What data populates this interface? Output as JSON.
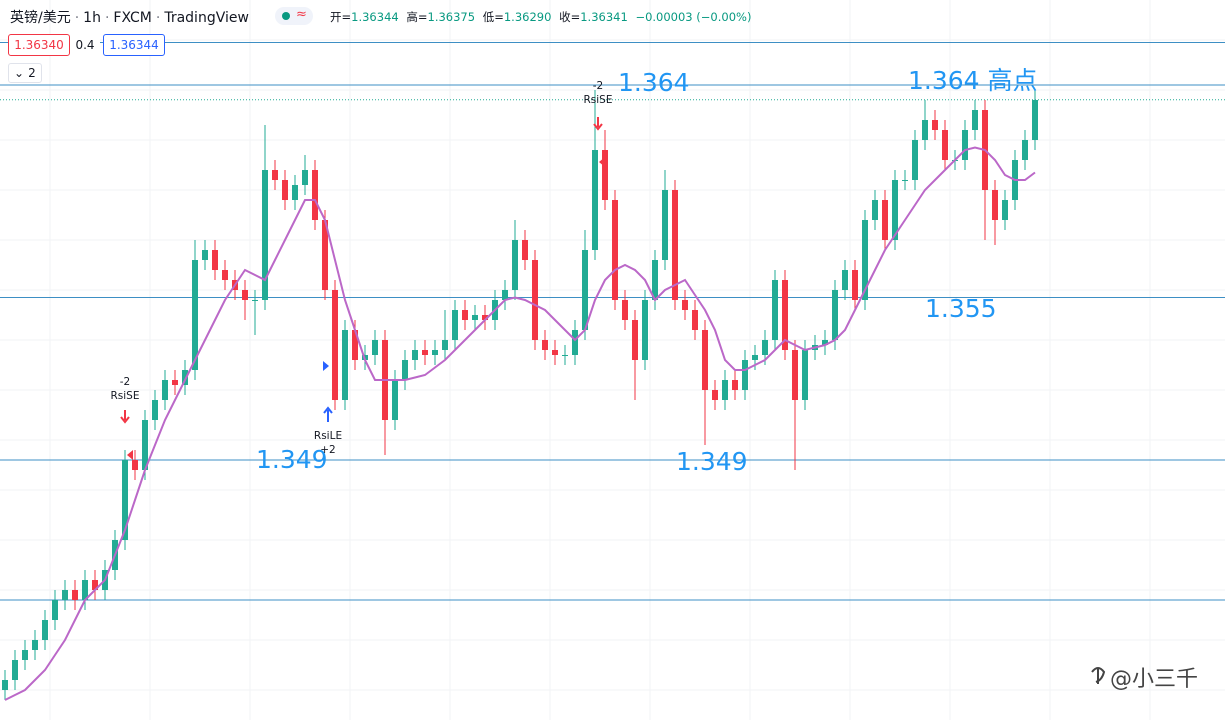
{
  "chart_data": {
    "type": "candlestick",
    "symbol": "英镑/美元",
    "interval": "1h",
    "source": "FXCM",
    "platform": "TradingView",
    "legend": {
      "open_label": "开=",
      "open": "1.36344",
      "high_label": "高=",
      "high": "1.36375",
      "low_label": "低=",
      "low": "1.36290",
      "close_label": "收=",
      "close": "1.36341",
      "change": "−0.00003 (−0.00%)"
    },
    "sell_price": "1.36340",
    "spread": "0.4",
    "buy_price": "1.36344",
    "indicator_count": "2",
    "ylim": [
      1.3386,
      1.3674
    ],
    "up_color": "#22ab94",
    "down_color": "#f23645",
    "ma_color": "#bb68c8",
    "line_color": "#3d8fc4",
    "hlines": [
      1.3657,
      1.364,
      1.3555,
      1.349,
      1.3434
    ],
    "open": [
      1.3398,
      1.3402,
      1.341,
      1.3414,
      1.3418,
      1.3426,
      1.3434,
      1.3438,
      1.3434,
      1.3442,
      1.3438,
      1.3446,
      1.3458,
      1.349,
      1.3486,
      1.3506,
      1.3514,
      1.3522,
      1.352,
      1.3526,
      1.357,
      1.3574,
      1.3566,
      1.3562,
      1.3558,
      1.3554,
      1.3554,
      1.3606,
      1.3602,
      1.3594,
      1.36,
      1.3606,
      1.3586,
      1.3558,
      1.3514,
      1.3542,
      1.353,
      1.3532,
      1.3538,
      1.3506,
      1.3522,
      1.353,
      1.3534,
      1.3532,
      1.3534,
      1.3538,
      1.355,
      1.3546,
      1.3548,
      1.3546,
      1.3554,
      1.3558,
      1.3578,
      1.357,
      1.3538,
      1.3534,
      1.3532,
      1.3532,
      1.3542,
      1.3574,
      1.3614,
      1.3594,
      1.3554,
      1.3546,
      1.353,
      1.3554,
      1.357,
      1.3598,
      1.3554,
      1.355,
      1.3542,
      1.3518,
      1.3514,
      1.3522,
      1.3518,
      1.353,
      1.3532,
      1.3538,
      1.3562,
      1.3534,
      1.3514,
      1.3534,
      1.3536,
      1.3538,
      1.3558,
      1.3566,
      1.3554,
      1.3586,
      1.3594,
      1.3578,
      1.3602,
      1.3602,
      1.3618,
      1.3626,
      1.3622,
      1.361,
      1.361,
      1.3622,
      1.363,
      1.3598,
      1.3586,
      1.3594,
      1.361,
      1.3618
    ],
    "high": [
      1.3406,
      1.3414,
      1.3418,
      1.3422,
      1.343,
      1.3438,
      1.3442,
      1.3442,
      1.3446,
      1.3446,
      1.345,
      1.3462,
      1.3494,
      1.3494,
      1.351,
      1.3518,
      1.3526,
      1.3526,
      1.353,
      1.3578,
      1.3578,
      1.3578,
      1.357,
      1.3566,
      1.3562,
      1.3558,
      1.3624,
      1.361,
      1.3606,
      1.3604,
      1.3612,
      1.361,
      1.359,
      1.3562,
      1.3546,
      1.3546,
      1.3536,
      1.3542,
      1.3542,
      1.3526,
      1.3534,
      1.3538,
      1.3538,
      1.3538,
      1.355,
      1.3554,
      1.3554,
      1.3552,
      1.3552,
      1.3558,
      1.3562,
      1.3586,
      1.3582,
      1.3574,
      1.3542,
      1.3538,
      1.3536,
      1.3546,
      1.3582,
      1.3638,
      1.3622,
      1.3598,
      1.3558,
      1.355,
      1.3558,
      1.3574,
      1.3606,
      1.3602,
      1.3558,
      1.3554,
      1.3546,
      1.3522,
      1.3526,
      1.3526,
      1.3534,
      1.3536,
      1.3542,
      1.3566,
      1.3566,
      1.3538,
      1.3538,
      1.354,
      1.3542,
      1.3562,
      1.357,
      1.357,
      1.359,
      1.3598,
      1.3598,
      1.3606,
      1.3606,
      1.3622,
      1.3634,
      1.363,
      1.3626,
      1.3614,
      1.3626,
      1.3634,
      1.3634,
      1.3602,
      1.3598,
      1.3614,
      1.3622,
      1.3638
    ],
    "low": [
      1.3394,
      1.3398,
      1.3406,
      1.341,
      1.3414,
      1.3422,
      1.343,
      1.343,
      1.343,
      1.3434,
      1.3434,
      1.3442,
      1.3454,
      1.3482,
      1.3482,
      1.3502,
      1.351,
      1.3516,
      1.3516,
      1.3522,
      1.3566,
      1.3562,
      1.3558,
      1.3554,
      1.3546,
      1.354,
      1.355,
      1.3598,
      1.359,
      1.359,
      1.3596,
      1.3582,
      1.3554,
      1.351,
      1.351,
      1.3526,
      1.3526,
      1.3528,
      1.3492,
      1.3502,
      1.3518,
      1.3526,
      1.3528,
      1.3528,
      1.353,
      1.3534,
      1.3542,
      1.3542,
      1.3542,
      1.3542,
      1.355,
      1.3554,
      1.3566,
      1.3534,
      1.353,
      1.3528,
      1.3528,
      1.3528,
      1.3538,
      1.357,
      1.359,
      1.355,
      1.3542,
      1.3514,
      1.3526,
      1.355,
      1.3566,
      1.355,
      1.3546,
      1.3538,
      1.3496,
      1.351,
      1.351,
      1.3514,
      1.3514,
      1.3526,
      1.3528,
      1.3534,
      1.353,
      1.3486,
      1.351,
      1.353,
      1.3532,
      1.3534,
      1.3554,
      1.355,
      1.355,
      1.3582,
      1.3574,
      1.3574,
      1.3598,
      1.3598,
      1.3614,
      1.3618,
      1.3606,
      1.3606,
      1.3606,
      1.3618,
      1.3578,
      1.3576,
      1.3582,
      1.359,
      1.3606,
      1.3614
    ],
    "close": [
      1.3402,
      1.341,
      1.3414,
      1.3418,
      1.3426,
      1.3434,
      1.3438,
      1.3434,
      1.3442,
      1.3438,
      1.3446,
      1.3458,
      1.349,
      1.3486,
      1.3506,
      1.3514,
      1.3522,
      1.352,
      1.3526,
      1.357,
      1.3574,
      1.3566,
      1.3562,
      1.3558,
      1.3554,
      1.3554,
      1.3606,
      1.3602,
      1.3594,
      1.36,
      1.3606,
      1.3586,
      1.3558,
      1.3514,
      1.3542,
      1.353,
      1.3532,
      1.3538,
      1.3506,
      1.3522,
      1.353,
      1.3534,
      1.3532,
      1.3534,
      1.3538,
      1.355,
      1.3546,
      1.3548,
      1.3546,
      1.3554,
      1.3558,
      1.3578,
      1.357,
      1.3538,
      1.3534,
      1.3532,
      1.3532,
      1.3542,
      1.3574,
      1.3614,
      1.3594,
      1.3554,
      1.3546,
      1.353,
      1.3554,
      1.357,
      1.3598,
      1.3554,
      1.355,
      1.3542,
      1.3518,
      1.3514,
      1.3522,
      1.3518,
      1.353,
      1.3532,
      1.3538,
      1.3562,
      1.3534,
      1.3514,
      1.3534,
      1.3536,
      1.3538,
      1.3558,
      1.3566,
      1.3554,
      1.3586,
      1.3594,
      1.3578,
      1.3602,
      1.3602,
      1.3618,
      1.3626,
      1.3622,
      1.361,
      1.361,
      1.3622,
      1.363,
      1.3598,
      1.3586,
      1.3594,
      1.361,
      1.3618,
      1.3634
    ],
    "ma": [
      1.3394,
      1.3396,
      1.3398,
      1.3402,
      1.3406,
      1.3412,
      1.3418,
      1.3426,
      1.3434,
      1.3438,
      1.3442,
      1.3452,
      1.3462,
      1.3474,
      1.3486,
      1.3496,
      1.3506,
      1.3514,
      1.3522,
      1.353,
      1.3538,
      1.3546,
      1.3554,
      1.356,
      1.3566,
      1.3564,
      1.3562,
      1.357,
      1.3578,
      1.3586,
      1.3594,
      1.3594,
      1.3586,
      1.357,
      1.3554,
      1.3542,
      1.353,
      1.3522,
      1.3522,
      1.3522,
      1.3522,
      1.3523,
      1.3524,
      1.3527,
      1.353,
      1.3534,
      1.3538,
      1.3542,
      1.3546,
      1.355,
      1.3554,
      1.3555,
      1.3554,
      1.3552,
      1.355,
      1.3546,
      1.3542,
      1.3538,
      1.3542,
      1.3554,
      1.3562,
      1.3566,
      1.3568,
      1.3566,
      1.3562,
      1.3554,
      1.3558,
      1.356,
      1.3562,
      1.3556,
      1.355,
      1.3542,
      1.353,
      1.3526,
      1.3526,
      1.3528,
      1.353,
      1.3534,
      1.3538,
      1.3536,
      1.3534,
      1.3535,
      1.3536,
      1.3538,
      1.3542,
      1.355,
      1.3558,
      1.3566,
      1.3574,
      1.358,
      1.3586,
      1.3592,
      1.3598,
      1.3602,
      1.3606,
      1.361,
      1.3614,
      1.3615,
      1.3614,
      1.361,
      1.3604,
      1.3602,
      1.3602,
      1.3605
    ],
    "annotations": [
      "1.364",
      "1.364 高点",
      "1.355",
      "1.349",
      "1.349"
    ],
    "signals": {
      "s1_qty": "-2",
      "s1_name": "RsiSE",
      "s2_name": "RsiLE",
      "s2_qty": "+2",
      "s3_qty": "-2",
      "s3_name": "RsiSE"
    },
    "watermark": "@小三千"
  }
}
